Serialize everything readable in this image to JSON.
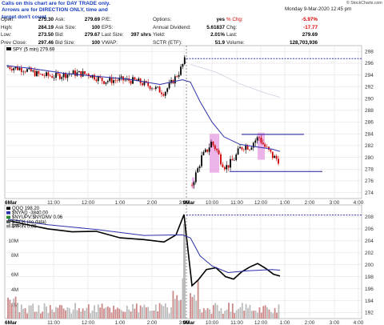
{
  "note": {
    "line1": "Calls on this chart are for DAY TRADE only.",
    "line2": "Arrows are for DIRECTION ONLY, time and target don't count."
  },
  "timestamp": "Monday  9-Mar-2020  12:45 pm",
  "copyright": "© StockCharts.com",
  "quote": {
    "rows": [
      {
        "l1": "Open:",
        "v1": "275.30",
        "l2": "Ask:",
        "v2": "279.69",
        "l3": "P/E:",
        "v3": "",
        "l4": "Options:",
        "v4": "yes",
        "l5": "% Chg:",
        "v5": "-5.97%"
      },
      {
        "l1": "High:",
        "v1": "284.19",
        "l2": "Ask Size:",
        "v2": "100",
        "l3": "EPS:",
        "v3": "",
        "l4": "Annual Dividend:",
        "v4": "5.61837",
        "l5": "Chg:",
        "v5": "-17.77"
      },
      {
        "l1": "Low:",
        "v1": "273.50",
        "l2": "Bid:",
        "v2": "279.67",
        "l3": "Last Size:",
        "v3": "397 shrs",
        "l4": "Yield:",
        "v4": "2.01%",
        "l5": "Last:",
        "v5": "279.69"
      },
      {
        "l1": "Prev Close:",
        "v1": "297.46",
        "l2": "Bid Size:",
        "v2": "100",
        "l3": "VWAP:",
        "v3": "",
        "l4": "SCTR (ETF):",
        "v4": "51.9",
        "l5": "Volume:",
        "v5": "128,703,936"
      }
    ]
  },
  "colors": {
    "up": "#000000",
    "down": "#cc0000",
    "ma": "#2b2fa8",
    "ref": "#1a1aa0",
    "vol": "#bbbbbb",
    "highlight": "#e9a7e4"
  },
  "chart_data": [
    {
      "type": "line",
      "title": "SPY (5 min) 279.69",
      "series": [
        {
          "name": "SPY (5 min) 279.69"
        }
      ],
      "ylim": [
        273,
        299
      ],
      "yticks": [
        274,
        276,
        278,
        280,
        282,
        284,
        286,
        288,
        290,
        292,
        294,
        296,
        298
      ],
      "x_ticks": [
        "6Mar",
        "11:00",
        "12:00",
        "1:00",
        "2:00",
        "3:00",
        "9Mar",
        "10:00",
        "11:00",
        "12:00",
        "1:00",
        "2:00",
        "3:00",
        "4:00"
      ],
      "reference_lines": [
        296.8,
        283.9,
        277.6
      ],
      "highlights": [
        "10:00-10:15",
        "12:05-12:15"
      ]
    },
    {
      "type": "line",
      "legend": [
        "QQQ 198.20",
        "$NYAD -3840.00",
        "$NYUPV:$NYDNV 0.06",
        "$TICK (no data)",
        "$TRIN 0.85"
      ],
      "right_ylim": [
        191,
        210
      ],
      "right_yticks": [
        192,
        194,
        196,
        198,
        200,
        202,
        204,
        206,
        208
      ],
      "volume_ticks": [
        "2M",
        "4M",
        "6M",
        "8M",
        "10M",
        "12M"
      ],
      "reference_line": 208.3
    }
  ]
}
